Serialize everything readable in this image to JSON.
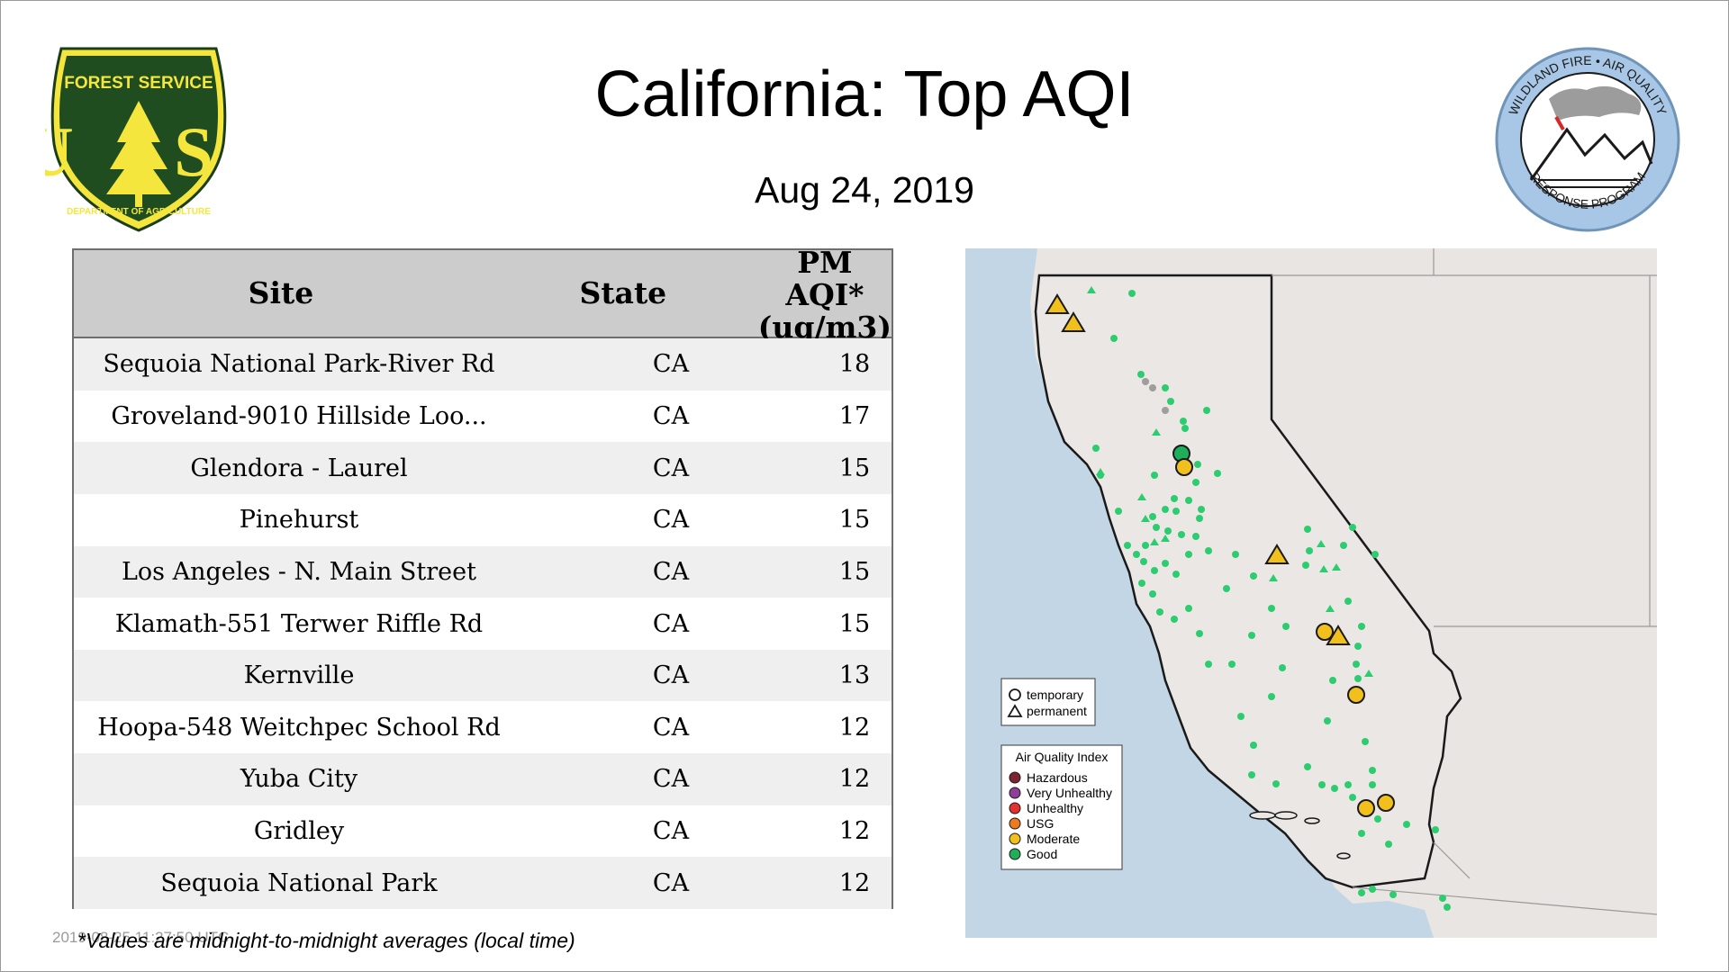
{
  "header": {
    "title": "California: Top AQI",
    "date": "Aug 24, 2019"
  },
  "logos": {
    "usfs": {
      "top_text": "FOREST SERVICE",
      "letters": "U S",
      "bottom_text": "DEPARTMENT OF AGRICULTURE"
    },
    "wildland": {
      "ring_top": "WILDLAND FIRE • AIR QUALITY",
      "ring_bottom": "RESPONSE PROGRAM"
    }
  },
  "table": {
    "columns": [
      "Site",
      "State",
      "PM AQI*",
      "(ug/m3)"
    ],
    "rows": [
      {
        "site": "Sequoia National Park-River Rd",
        "state": "CA",
        "aqi": "18"
      },
      {
        "site": "Groveland-9010 Hillside Loo...",
        "state": "CA",
        "aqi": "17"
      },
      {
        "site": "Glendora - Laurel",
        "state": "CA",
        "aqi": "15"
      },
      {
        "site": "Pinehurst",
        "state": "CA",
        "aqi": "15"
      },
      {
        "site": "Los Angeles - N. Main Street",
        "state": "CA",
        "aqi": "15"
      },
      {
        "site": "Klamath-551 Terwer Riffle Rd",
        "state": "CA",
        "aqi": "15"
      },
      {
        "site": "Kernville",
        "state": "CA",
        "aqi": "13"
      },
      {
        "site": "Hoopa-548 Weitchpec School Rd",
        "state": "CA",
        "aqi": "12"
      },
      {
        "site": "Yuba City",
        "state": "CA",
        "aqi": "12"
      },
      {
        "site": "Gridley",
        "state": "CA",
        "aqi": "12"
      },
      {
        "site": "Sequoia National Park",
        "state": "CA",
        "aqi": "12"
      }
    ]
  },
  "footnote": "*Values are midnight-to-midnight averages (local time)",
  "timestamp": "2019-08-25 11:27:50 UTC",
  "map": {
    "shape_legend": {
      "temporary": "temporary",
      "permanent": "permanent"
    },
    "aqi_legend": {
      "title": "Air Quality Index",
      "items": [
        {
          "label": "Hazardous",
          "color": "#7e2330"
        },
        {
          "label": "Very Unhealthy",
          "color": "#8f3f97"
        },
        {
          "label": "Unhealthy",
          "color": "#e53030"
        },
        {
          "label": "USG",
          "color": "#ee7a1f"
        },
        {
          "label": "Moderate",
          "color": "#f2c01c"
        },
        {
          "label": "Good",
          "color": "#1fae5a"
        }
      ]
    },
    "colors": {
      "good": "#2ecc71",
      "moderate": "#f2c01c",
      "ocean": "#c3d6e6",
      "land": "#ebe7e4",
      "border": "#1a1a1a"
    }
  }
}
